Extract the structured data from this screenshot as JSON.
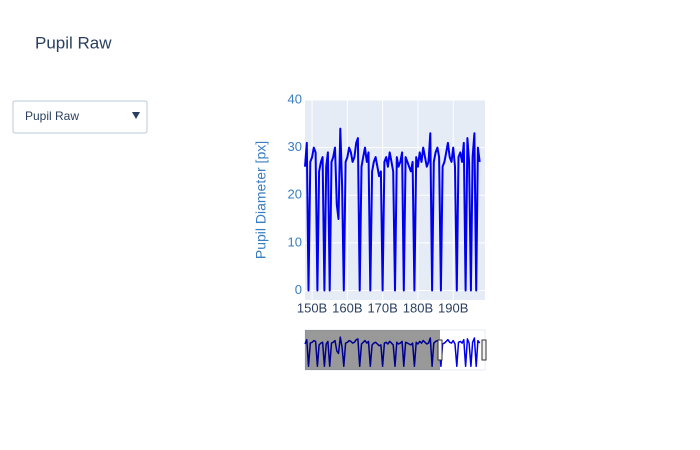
{
  "chart_data": {
    "type": "line",
    "title": "Pupil Raw",
    "dropdown": "Pupil Raw",
    "y_label": "Pupil Diameter [px]",
    "x": [
      148000000000.0,
      148500000000.0,
      149000000000.0,
      149500000000.0,
      150000000000.0,
      150500000000.0,
      151000000000.0,
      151500000000.0,
      152000000000.0,
      152500000000.0,
      153000000000.0,
      153500000000.0,
      154000000000.0,
      154500000000.0,
      155000000000.0,
      155500000000.0,
      156000000000.0,
      156500000000.0,
      157000000000.0,
      157500000000.0,
      158000000000.0,
      158500000000.0,
      159000000000.0,
      159500000000.0,
      160000000000.0,
      160500000000.0,
      161000000000.0,
      161500000000.0,
      162000000000.0,
      162500000000.0,
      163000000000.0,
      163500000000.0,
      164000000000.0,
      164500000000.0,
      165000000000.0,
      165500000000.0,
      166000000000.0,
      166500000000.0,
      167000000000.0,
      167500000000.0,
      168000000000.0,
      168500000000.0,
      169000000000.0,
      169500000000.0,
      170000000000.0,
      170500000000.0,
      171000000000.0,
      171500000000.0,
      172000000000.0,
      172500000000.0,
      173000000000.0,
      173500000000.0,
      174000000000.0,
      174500000000.0,
      175000000000.0,
      175500000000.0,
      176000000000.0,
      176500000000.0,
      177000000000.0,
      177500000000.0,
      178000000000.0,
      178500000000.0,
      179000000000.0,
      179500000000.0,
      180000000000.0,
      180500000000.0,
      181000000000.0,
      181500000000.0,
      182000000000.0,
      182500000000.0,
      183000000000.0,
      183500000000.0,
      184000000000.0,
      184500000000.0,
      185000000000.0,
      185500000000.0,
      186000000000.0,
      186500000000.0,
      187000000000.0,
      187500000000.0,
      188000000000.0,
      188500000000.0,
      189000000000.0,
      189500000000.0,
      190000000000.0,
      190500000000.0,
      191000000000.0,
      191500000000.0,
      192000000000.0,
      192500000000.0,
      193000000000.0,
      193500000000.0,
      194000000000.0,
      194500000000.0,
      195000000000.0,
      195500000000.0,
      196000000000.0,
      196500000000.0,
      197000000000.0,
      197500000000.0
    ],
    "series": [
      {
        "color": "#0000ee",
        "values": [
          26,
          31,
          0,
          27,
          28,
          30,
          29,
          0,
          25,
          27,
          28,
          0,
          26,
          29,
          0,
          27,
          28,
          30,
          18,
          15,
          34,
          22,
          0,
          27,
          28,
          30,
          29,
          27,
          28,
          31,
          32,
          0,
          26,
          28,
          30,
          27,
          29,
          0,
          25,
          27,
          28,
          26,
          24,
          25,
          0,
          27,
          28,
          26,
          29,
          27,
          25,
          0,
          28,
          26,
          27,
          29,
          0,
          28,
          27,
          26,
          25,
          27,
          0,
          28,
          26,
          29,
          27,
          30,
          28,
          26,
          27,
          33,
          0,
          27,
          29,
          30,
          28,
          0,
          26,
          27,
          29,
          31,
          28,
          27,
          30,
          26,
          0,
          28,
          29,
          27,
          31,
          0,
          32,
          27,
          0,
          28,
          33,
          0,
          30,
          27
        ]
      }
    ],
    "xlim": [
      148000000000.0,
      199000000000.0
    ],
    "xticks": [
      {
        "value": 150000000000.0,
        "label": "150B"
      },
      {
        "value": 160000000000.0,
        "label": "160B"
      },
      {
        "value": 170000000000.0,
        "label": "170B"
      },
      {
        "value": 180000000000.0,
        "label": "180B"
      },
      {
        "value": 190000000000.0,
        "label": "190B"
      }
    ],
    "ylim": [
      -2,
      40
    ],
    "yticks": [
      0,
      10,
      20,
      30,
      40
    ],
    "grid": true,
    "rangeslider": true
  }
}
